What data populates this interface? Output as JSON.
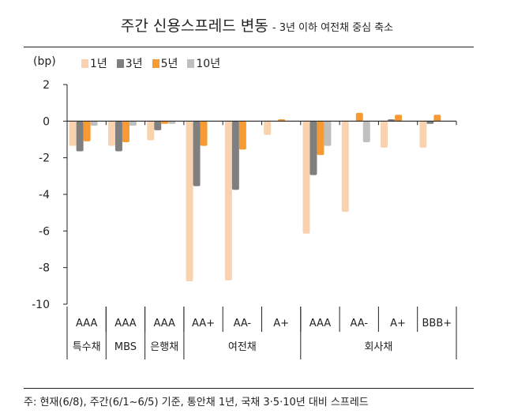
{
  "chart_data": {
    "type": "bar",
    "title": "주간 신용스프레드 변동",
    "subtitle": "- 3년 이하 여전채 중심 축소",
    "ylabel": "(bp)",
    "ylim": [
      -10,
      2
    ],
    "yticks": [
      "2",
      "0",
      "-2",
      "-4",
      "-6",
      "-8",
      "-10"
    ],
    "grid": false,
    "legend_position": "top-left",
    "categories": [
      "AAA",
      "AAA",
      "AAA",
      "AA+",
      "AA-",
      "A+",
      "AAA",
      "AA-",
      "A+",
      "BBB+"
    ],
    "groups": [
      {
        "label": "특수채",
        "span": 1
      },
      {
        "label": "MBS",
        "span": 1
      },
      {
        "label": "은행채",
        "span": 1
      },
      {
        "label": "여전채",
        "span": 3
      },
      {
        "label": "회사채",
        "span": 4
      }
    ],
    "series": [
      {
        "name": "1년",
        "color": "#F9D3B0",
        "values": [
          -1.35,
          -1.35,
          -1.05,
          -8.75,
          -8.7,
          -0.75,
          -6.15,
          -4.95,
          -1.45,
          -1.45
        ]
      },
      {
        "name": "3년",
        "color": "#7F7F7F",
        "values": [
          -1.65,
          -1.65,
          -0.5,
          -3.55,
          -3.75,
          0,
          -2.95,
          0,
          0.1,
          -0.15
        ]
      },
      {
        "name": "5년",
        "color": "#F79A34",
        "values": [
          -1.1,
          -1.15,
          -0.15,
          -1.35,
          -1.55,
          0.1,
          -1.85,
          0.45,
          0.35,
          0.35
        ]
      },
      {
        "name": "10년",
        "color": "#BFBFBF",
        "values": [
          -0.25,
          -0.25,
          -0.15,
          0,
          0,
          0,
          -1.35,
          -1.15,
          0,
          0
        ]
      }
    ]
  },
  "footnote": "주: 현재(6/8), 주간(6/1~6/5) 기준, 통안채 1년, 국채 3·5·10년 대비 스프레드"
}
